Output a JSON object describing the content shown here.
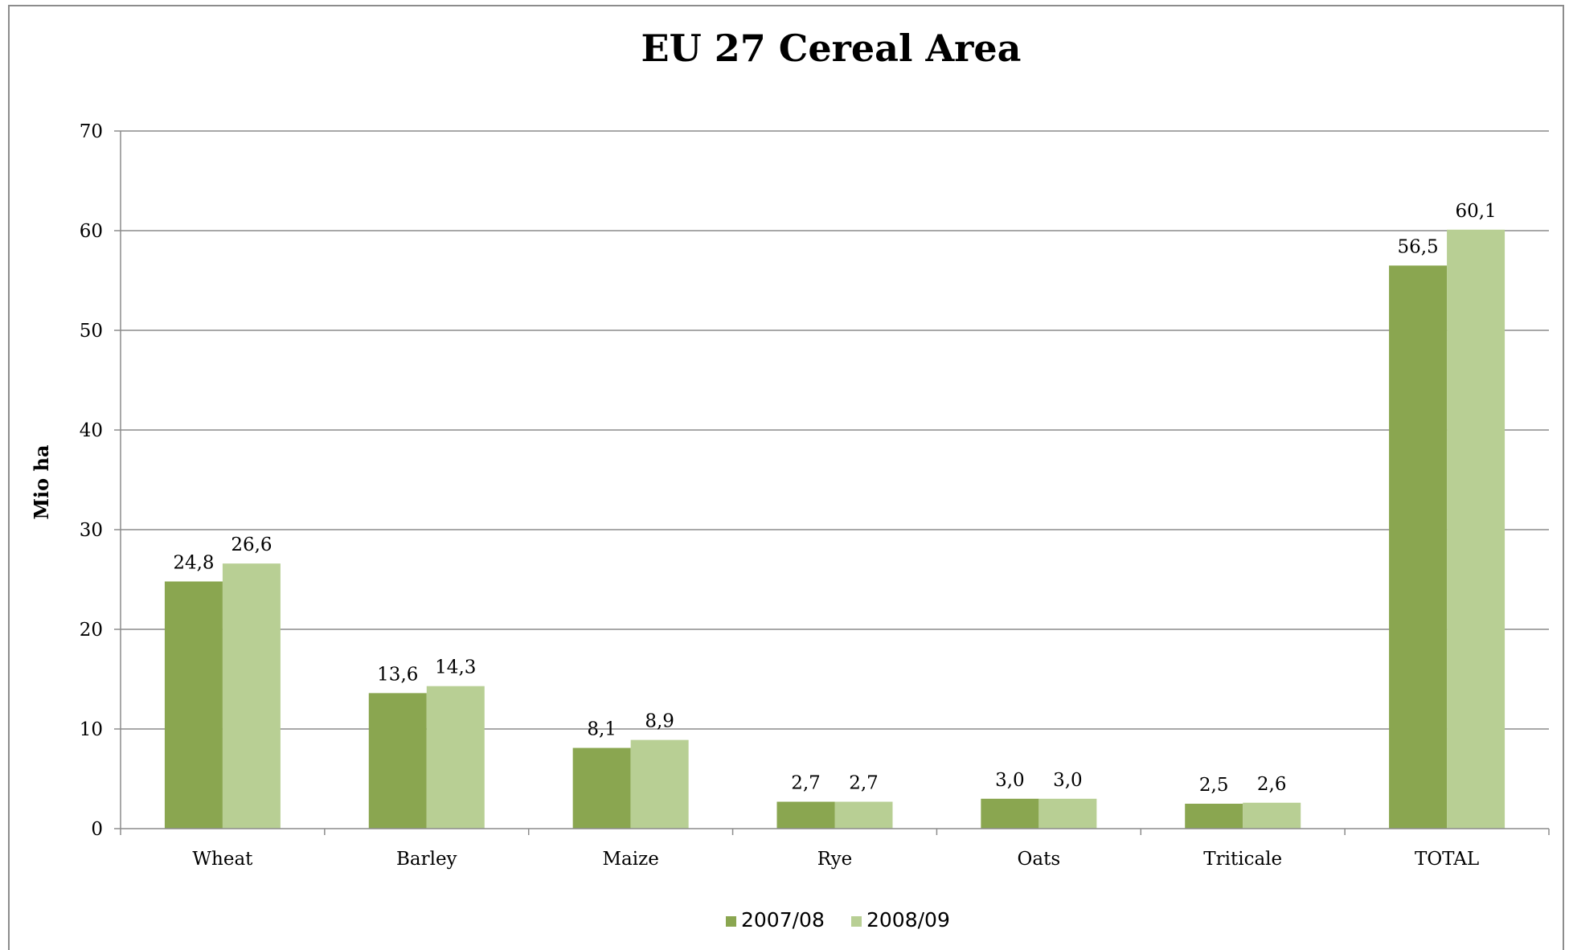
{
  "chart_data": {
    "type": "bar",
    "title": "EU 27 Cereal Area",
    "xlabel": "",
    "ylabel": "Mio ha",
    "ylim": [
      0,
      70
    ],
    "yticks": [
      0,
      10,
      20,
      30,
      40,
      50,
      60,
      70
    ],
    "grid": true,
    "legend_position": "bottom",
    "categories": [
      "Wheat",
      "Barley",
      "Maize",
      "Rye",
      "Oats",
      "Triticale",
      "TOTAL"
    ],
    "series": [
      {
        "name": "2007/08",
        "color": "#8aa650",
        "values": [
          24.8,
          13.6,
          8.1,
          2.7,
          3.0,
          2.5,
          56.5
        ],
        "labels": [
          "24,8",
          "13,6",
          "8,1",
          "2,7",
          "3,0",
          "2,5",
          "56,5"
        ]
      },
      {
        "name": "2008/09",
        "color": "#b8cf94",
        "values": [
          26.6,
          14.3,
          8.9,
          2.7,
          3.0,
          2.6,
          60.1
        ],
        "labels": [
          "26,6",
          "14,3",
          "8,9",
          "2,7",
          "3,0",
          "2,6",
          "60,1"
        ]
      }
    ]
  }
}
